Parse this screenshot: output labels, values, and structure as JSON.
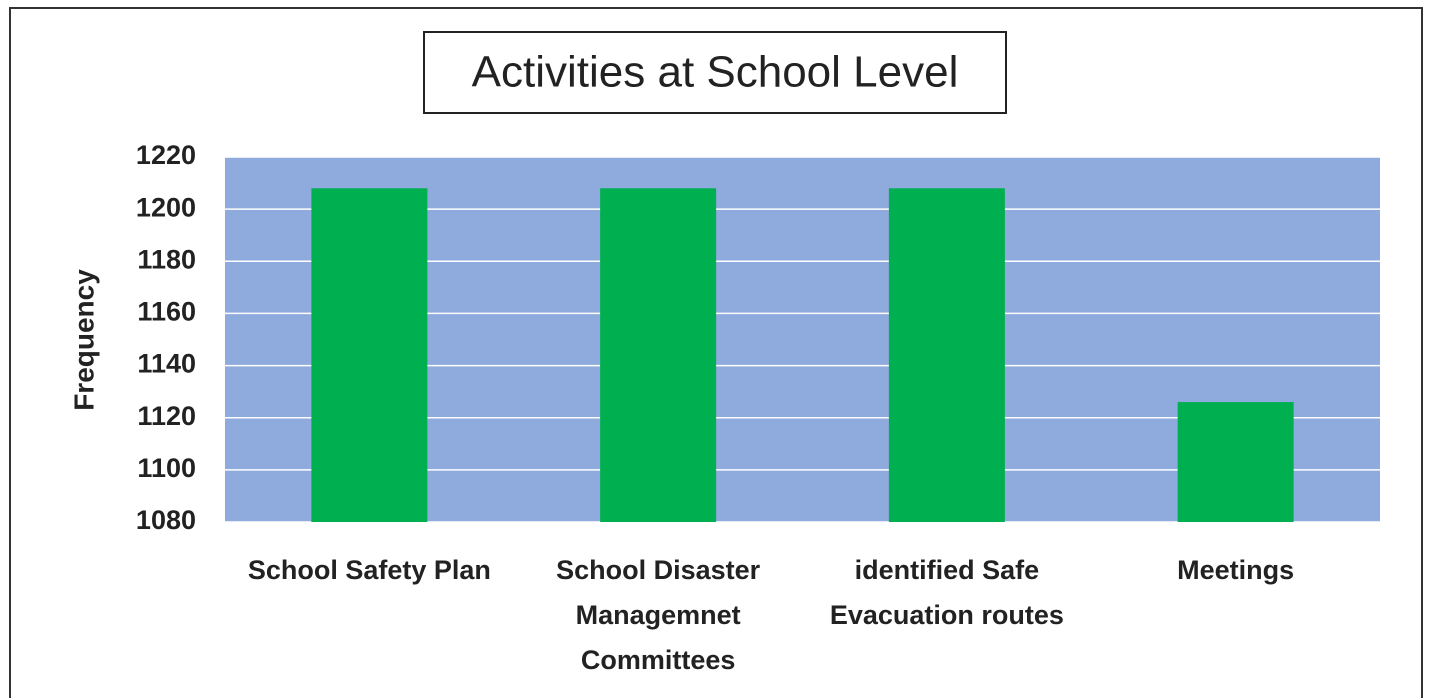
{
  "chart_data": {
    "type": "bar",
    "title": "Activities at School Level",
    "y_label": "Frequency",
    "categories": [
      "School Safety Plan",
      "School Disaster Managemnet Committees",
      "identified Safe Evacuation routes",
      "Meetings"
    ],
    "values": [
      1208,
      1208,
      1208,
      1126
    ],
    "color": "#00b050",
    "plot_background": "#8faadc",
    "ylim": [
      1080,
      1220
    ],
    "yticks": [
      1080,
      1100,
      1120,
      1140,
      1160,
      1180,
      1200,
      1220
    ],
    "grid": true
  }
}
